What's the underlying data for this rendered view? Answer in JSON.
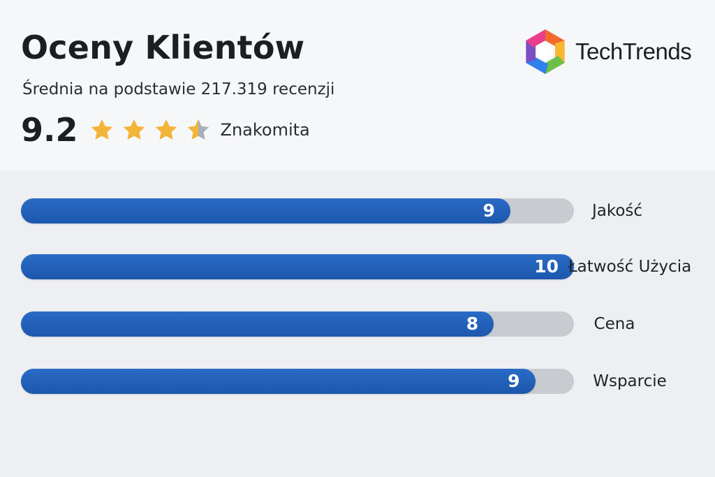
{
  "header": {
    "title": "Oceny Klientów",
    "subtitle": "Średnia na podstawie 217.319 recenzji",
    "score": "9.2",
    "score_label": "Znakomita",
    "stars": {
      "filled": 3,
      "half": 1,
      "total": 4,
      "star_color": "#f4b43a",
      "empty_color": "#a9afb6"
    }
  },
  "brand": {
    "name": "TechTrends",
    "logo_icon": "aperture-logo-icon",
    "logo_colors": [
      "#e83e8c",
      "#f26a2e",
      "#f7b731",
      "#6cc04a",
      "#2f80ed",
      "#7b4fc4"
    ]
  },
  "ratings": [
    {
      "label": "Jakość",
      "value": "9",
      "fill": 0.885
    },
    {
      "label": "Łatwość Użycia",
      "value": "10",
      "fill": 1.0
    },
    {
      "label": "Cena",
      "value": "8",
      "fill": 0.855
    },
    {
      "label": "Wsparcie",
      "value": "9",
      "fill": 0.93
    }
  ],
  "colors": {
    "bar_fill": "#2162b9",
    "bar_track": "#c8ccd1",
    "header_bg": "#f6f7f9",
    "body_bg": "#edeff2"
  }
}
